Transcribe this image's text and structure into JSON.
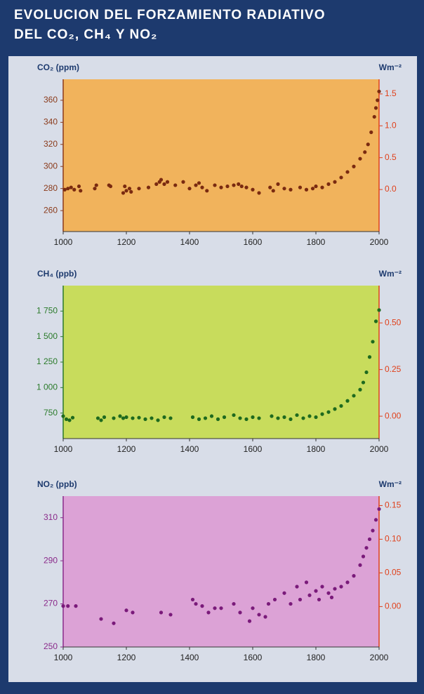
{
  "title": [
    "EVOLUCION DEL FORZAMIENTO RADIATIVO",
    "DEL CO₂, CH₄ Y NO₂"
  ],
  "chart_data": [
    {
      "type": "scatter",
      "y_label": "CO₂ (ppm)",
      "y2_label": "Wm⁻²",
      "background": "#f1b35c",
      "color": "#7a2a10",
      "axis_color": "#8a3a1a",
      "y2_color": "#e0401a",
      "xlim": [
        1000,
        2000
      ],
      "xticks": [
        1000,
        1200,
        1400,
        1600,
        1800,
        2000
      ],
      "ylim": [
        241,
        379
      ],
      "yticks": [
        260,
        280,
        300,
        320,
        340,
        360
      ],
      "y2lim": [
        -0.66,
        1.73
      ],
      "y2ticks": [
        {
          "value": 0,
          "label": "0.0"
        },
        0.5,
        {
          "value": 1,
          "label": "1.0"
        },
        1.5
      ],
      "x": [
        1005,
        1015,
        1025,
        1035,
        1050,
        1055,
        1100,
        1105,
        1145,
        1150,
        1190,
        1195,
        1200,
        1210,
        1215,
        1240,
        1270,
        1295,
        1305,
        1310,
        1320,
        1330,
        1355,
        1380,
        1400,
        1420,
        1430,
        1440,
        1455,
        1480,
        1500,
        1520,
        1540,
        1555,
        1565,
        1580,
        1600,
        1620,
        1655,
        1665,
        1680,
        1700,
        1720,
        1750,
        1770,
        1790,
        1800,
        1820,
        1840,
        1860,
        1880,
        1900,
        1920,
        1940,
        1955,
        1965,
        1975,
        1985,
        1990,
        1995,
        2000
      ],
      "values": [
        279,
        280,
        281,
        279,
        282,
        278,
        280,
        283,
        283,
        282,
        276,
        282,
        278,
        280,
        277,
        280,
        281,
        284,
        286,
        288,
        284,
        286,
        283,
        286,
        280,
        283,
        285,
        281,
        278,
        283,
        281,
        282,
        283,
        284,
        282,
        281,
        279,
        276,
        281,
        278,
        284,
        280,
        279,
        281,
        279,
        280,
        282,
        281,
        284,
        286,
        290,
        295,
        300,
        307,
        313,
        320,
        331,
        345,
        353,
        360,
        368
      ]
    },
    {
      "type": "scatter",
      "y_label": "CH₄ (ppb)",
      "y2_label": "Wm⁻²",
      "background": "#c8dc5c",
      "color": "#1e6a1e",
      "axis_color": "#2a7a2a",
      "y2_color": "#e0401a",
      "xlim": [
        1000,
        2000
      ],
      "xticks": [
        1000,
        1200,
        1400,
        1600,
        1800,
        2000
      ],
      "ylim": [
        500,
        2000
      ],
      "yticks": [
        750,
        {
          "value": 1000,
          "label": "1 000"
        },
        {
          "value": 1250,
          "label": "1 250"
        },
        {
          "value": 1500,
          "label": "1 500"
        },
        {
          "value": 1750,
          "label": "1 750"
        }
      ],
      "y2lim": [
        -0.12,
        0.7
      ],
      "y2ticks": [
        {
          "value": 0,
          "label": "0.00"
        },
        0.25,
        {
          "value": 0.5,
          "label": "0.50"
        }
      ],
      "x": [
        1000,
        1010,
        1020,
        1030,
        1110,
        1120,
        1130,
        1160,
        1180,
        1190,
        1200,
        1220,
        1240,
        1260,
        1280,
        1300,
        1320,
        1340,
        1410,
        1430,
        1450,
        1470,
        1490,
        1510,
        1540,
        1560,
        1580,
        1600,
        1620,
        1660,
        1680,
        1700,
        1720,
        1740,
        1760,
        1780,
        1800,
        1820,
        1840,
        1860,
        1880,
        1900,
        1920,
        1940,
        1950,
        1960,
        1970,
        1980,
        1990,
        2000
      ],
      "values": [
        720,
        690,
        680,
        705,
        700,
        680,
        710,
        700,
        720,
        700,
        710,
        700,
        705,
        690,
        700,
        680,
        710,
        700,
        710,
        690,
        700,
        720,
        690,
        710,
        730,
        700,
        690,
        710,
        700,
        720,
        700,
        710,
        690,
        730,
        700,
        720,
        710,
        740,
        760,
        790,
        820,
        870,
        920,
        980,
        1050,
        1150,
        1300,
        1450,
        1650,
        1760
      ]
    },
    {
      "type": "scatter",
      "y_label": "NO₂ (ppb)",
      "y2_label": "Wm⁻²",
      "background": "#dca2d6",
      "color": "#7a1a7a",
      "axis_color": "#8a2a8a",
      "y2_color": "#e0401a",
      "xlim": [
        1000,
        2000
      ],
      "xticks": [
        1000,
        1200,
        1400,
        1600,
        1800,
        2000
      ],
      "ylim": [
        250,
        320
      ],
      "yticks": [
        250,
        270,
        290,
        310
      ],
      "y2lim": [
        -0.06,
        0.164
      ],
      "y2ticks": [
        {
          "value": 0,
          "label": "0.00"
        },
        0.05,
        {
          "value": 0.1,
          "label": "0.10"
        },
        0.15
      ],
      "x": [
        1000,
        1015,
        1040,
        1120,
        1160,
        1200,
        1220,
        1310,
        1340,
        1410,
        1420,
        1440,
        1460,
        1480,
        1500,
        1540,
        1560,
        1590,
        1600,
        1620,
        1640,
        1650,
        1670,
        1700,
        1720,
        1740,
        1750,
        1770,
        1780,
        1800,
        1810,
        1820,
        1840,
        1850,
        1860,
        1880,
        1900,
        1920,
        1940,
        1950,
        1960,
        1970,
        1980,
        1990,
        2000
      ],
      "values": [
        269,
        269,
        269,
        263,
        261,
        267,
        266,
        266,
        265,
        272,
        270,
        269,
        266,
        268,
        268,
        270,
        266,
        262,
        268,
        265,
        264,
        270,
        272,
        275,
        270,
        278,
        272,
        280,
        274,
        276,
        272,
        278,
        275,
        273,
        277,
        278,
        280,
        283,
        288,
        292,
        296,
        300,
        304,
        309,
        314
      ]
    }
  ]
}
